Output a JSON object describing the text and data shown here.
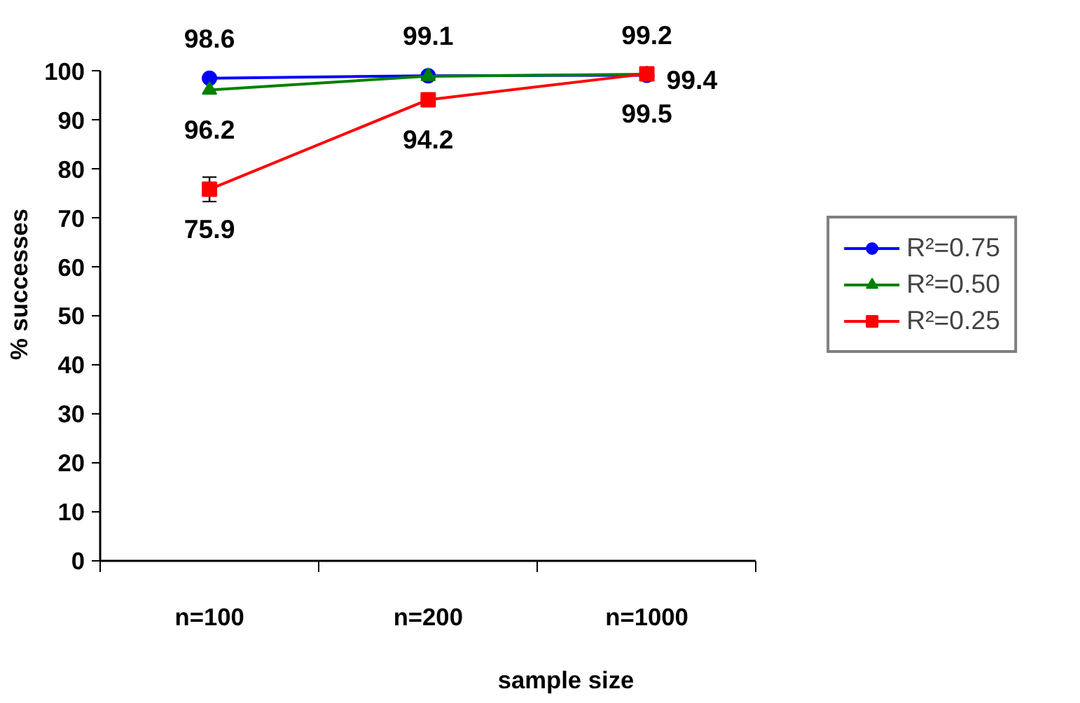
{
  "chart_data": {
    "type": "line",
    "xlabel": "sample size",
    "ylabel": "% successes",
    "categories": [
      "n=100",
      "n=200",
      "n=1000"
    ],
    "ylim": [
      0,
      100
    ],
    "yticks": [
      0,
      10,
      20,
      30,
      40,
      50,
      60,
      70,
      80,
      90,
      100
    ],
    "grid": false,
    "legend": "right",
    "series": [
      {
        "name": "R²=0.75",
        "color": "#0000ff",
        "marker": "circle",
        "values": [
          98.6,
          99.1,
          99.2
        ],
        "value_labels": [
          "98.6",
          "99.1",
          "99.2"
        ]
      },
      {
        "name": "R²=0.50",
        "color": "#008000",
        "marker": "triangle",
        "values": [
          96.2,
          99.0,
          99.4
        ],
        "value_labels": [
          "96.2",
          null,
          "99.4"
        ]
      },
      {
        "name": "R²=0.25",
        "color": "#ff0000",
        "marker": "square",
        "values": [
          75.9,
          94.2,
          99.5
        ],
        "value_labels": [
          "75.9",
          "94.2",
          "99.5"
        ],
        "errors": [
          2.5,
          null,
          null
        ]
      }
    ]
  }
}
